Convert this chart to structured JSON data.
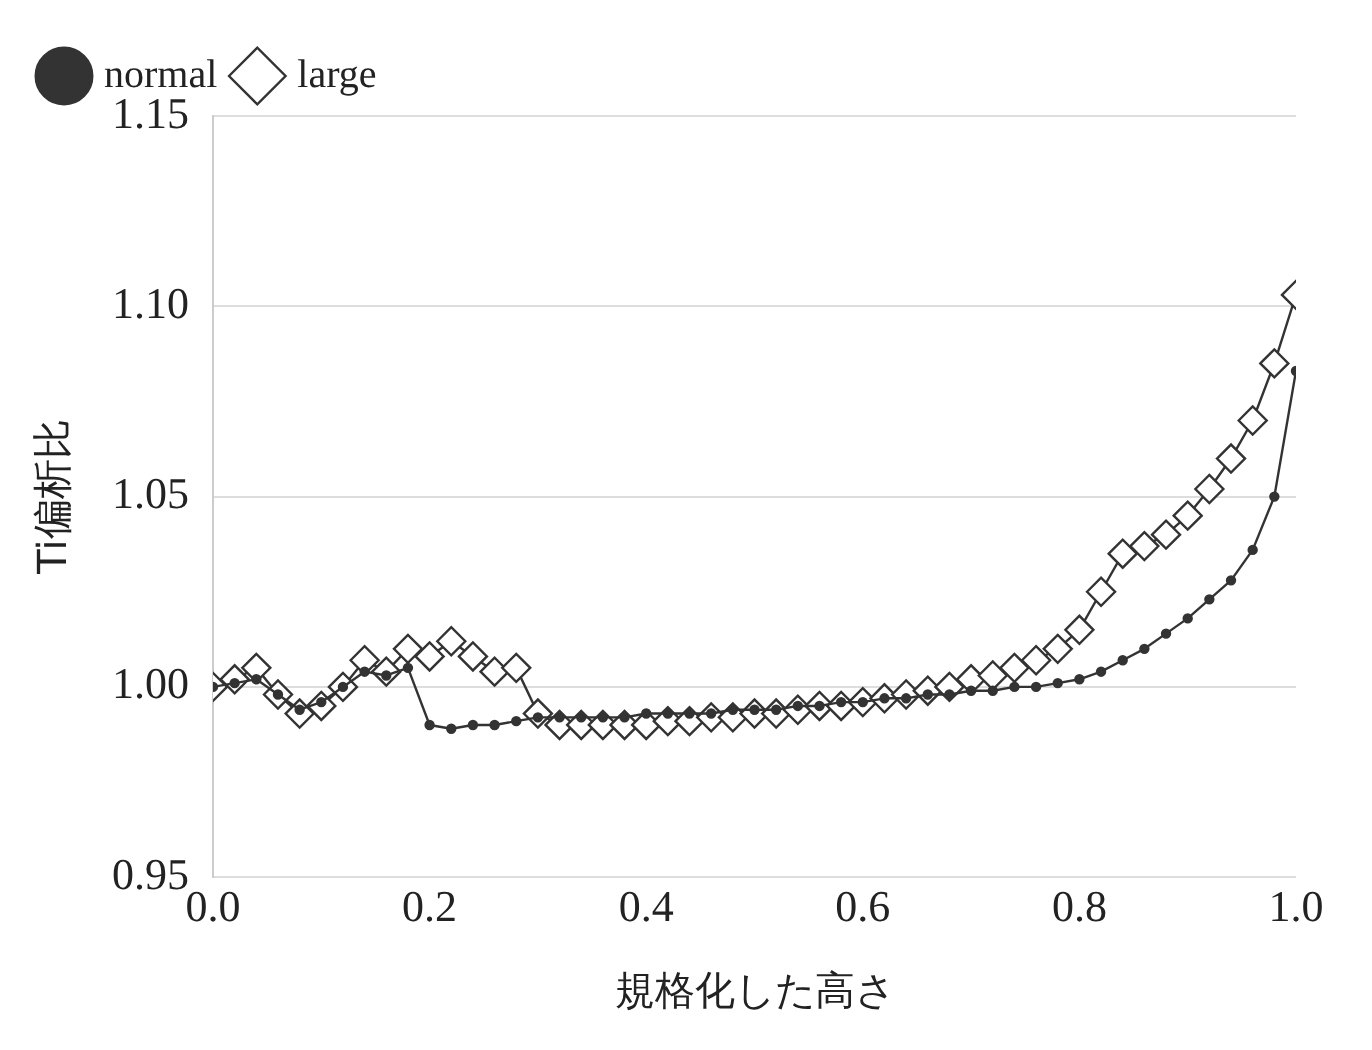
{
  "chart_data": {
    "type": "line",
    "xlabel": "規格化した高さ",
    "ylabel": "Ti偏析比",
    "xlim": [
      0,
      1
    ],
    "xticks": [
      {
        "value": 0,
        "label": "0.0"
      },
      0.2,
      0.4,
      0.6,
      0.8,
      {
        "value": 1,
        "label": "1.0"
      }
    ],
    "ylim": [
      0.95,
      1.15
    ],
    "yticks": [
      0.95,
      {
        "value": 1,
        "label": "1.00"
      },
      1.05,
      {
        "value": 1.1,
        "label": "1.10"
      },
      1.15
    ],
    "grid": "y",
    "legend": "top left",
    "line_style": "solid",
    "series": [
      {
        "name": "normal",
        "color": "#333333",
        "marker": "circle",
        "x": [
          0,
          0.02,
          0.04,
          0.06,
          0.08,
          0.1,
          0.12,
          0.14,
          0.16,
          0.18,
          0.2,
          0.22,
          0.24,
          0.26,
          0.28,
          0.3,
          0.32,
          0.34,
          0.36,
          0.38,
          0.4,
          0.42,
          0.44,
          0.46,
          0.48,
          0.5,
          0.52,
          0.54,
          0.56,
          0.58,
          0.6,
          0.62,
          0.64,
          0.66,
          0.68,
          0.7,
          0.72,
          0.74,
          0.76,
          0.78,
          0.8,
          0.82,
          0.84,
          0.86,
          0.88,
          0.9,
          0.92,
          0.94,
          0.96,
          0.98,
          1
        ],
        "values": [
          1.0,
          1.001,
          1.002,
          0.998,
          0.994,
          0.996,
          1.0,
          1.004,
          1.003,
          1.005,
          0.99,
          0.989,
          0.99,
          0.99,
          0.991,
          0.992,
          0.992,
          0.992,
          0.992,
          0.992,
          0.993,
          0.993,
          0.993,
          0.993,
          0.994,
          0.994,
          0.994,
          0.995,
          0.995,
          0.996,
          0.996,
          0.997,
          0.997,
          0.998,
          0.998,
          0.999,
          0.999,
          1.0,
          1.0,
          1.001,
          1.002,
          1.004,
          1.007,
          1.01,
          1.014,
          1.018,
          1.023,
          1.028,
          1.036,
          1.05,
          1.083
        ]
      },
      {
        "name": "large",
        "color": "#333333",
        "marker": "diamond",
        "x": [
          0,
          0.02,
          0.04,
          0.06,
          0.08,
          0.1,
          0.12,
          0.14,
          0.16,
          0.18,
          0.2,
          0.22,
          0.24,
          0.26,
          0.28,
          0.3,
          0.32,
          0.34,
          0.36,
          0.38,
          0.4,
          0.42,
          0.44,
          0.46,
          0.48,
          0.5,
          0.52,
          0.54,
          0.56,
          0.58,
          0.6,
          0.62,
          0.64,
          0.66,
          0.68,
          0.7,
          0.72,
          0.74,
          0.76,
          0.78,
          0.8,
          0.82,
          0.84,
          0.86,
          0.88,
          0.9,
          0.92,
          0.94,
          0.96,
          0.98,
          1
        ],
        "values": [
          1.0,
          1.002,
          1.005,
          0.998,
          0.993,
          0.995,
          1.0,
          1.007,
          1.004,
          1.01,
          1.008,
          1.012,
          1.008,
          1.004,
          1.005,
          0.993,
          0.99,
          0.99,
          0.99,
          0.99,
          0.99,
          0.991,
          0.991,
          0.992,
          0.992,
          0.993,
          0.993,
          0.994,
          0.995,
          0.995,
          0.996,
          0.997,
          0.998,
          0.999,
          1.0,
          1.002,
          1.003,
          1.005,
          1.007,
          1.01,
          1.015,
          1.025,
          1.035,
          1.037,
          1.04,
          1.045,
          1.052,
          1.06,
          1.07,
          1.085,
          1.103
        ]
      }
    ]
  }
}
